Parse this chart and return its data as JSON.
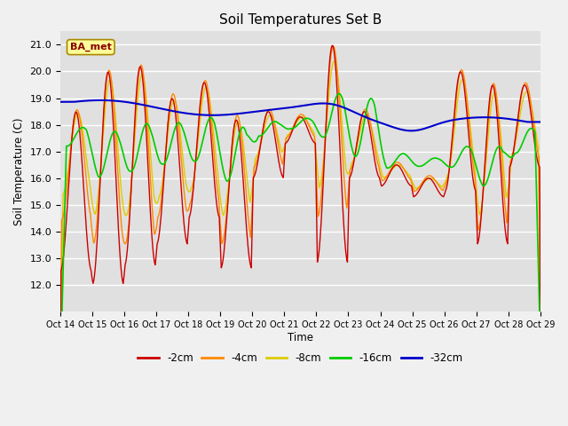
{
  "title": "Soil Temperatures Set B",
  "xlabel": "Time",
  "ylabel": "Soil Temperature (C)",
  "ylim": [
    11.0,
    21.5
  ],
  "yticks": [
    12.0,
    13.0,
    14.0,
    15.0,
    16.0,
    17.0,
    18.0,
    19.0,
    20.0,
    21.0
  ],
  "fig_facecolor": "#f0f0f0",
  "ax_facecolor": "#e0e0e0",
  "series_colors": {
    "-2cm": "#cc0000",
    "-4cm": "#ff8800",
    "-8cm": "#ddcc00",
    "-16cm": "#00cc00",
    "-32cm": "#0000cc"
  },
  "legend_label": "BA_met",
  "legend_box_color": "#ffff99",
  "legend_text_color": "#880000",
  "n_days": 15,
  "points_per_day": 48
}
